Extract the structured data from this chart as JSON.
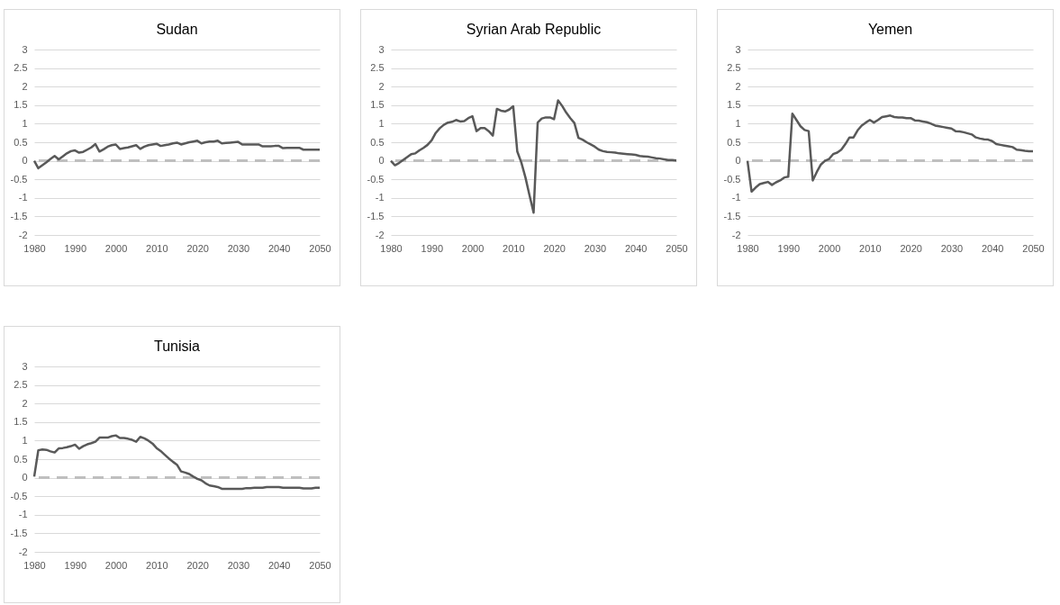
{
  "chart_data": [
    {
      "type": "line",
      "title": "Sudan",
      "x": [
        1980,
        1981,
        1982,
        1983,
        1984,
        1985,
        1986,
        1987,
        1988,
        1989,
        1990,
        1991,
        1992,
        1993,
        1994,
        1995,
        1996,
        1997,
        1998,
        1999,
        2000,
        2001,
        2002,
        2003,
        2004,
        2005,
        2006,
        2007,
        2008,
        2009,
        2010,
        2011,
        2012,
        2013,
        2014,
        2015,
        2016,
        2017,
        2018,
        2019,
        2020,
        2021,
        2022,
        2023,
        2024,
        2025,
        2026,
        2027,
        2028,
        2029,
        2030,
        2031,
        2032,
        2033,
        2034,
        2035,
        2036,
        2037,
        2038,
        2039,
        2040,
        2041,
        2042,
        2043,
        2044,
        2045,
        2046,
        2047,
        2048,
        2049,
        2050
      ],
      "series": [
        {
          "color": "#595959",
          "values": [
            0,
            -0.2,
            -0.12,
            -0.04,
            0.05,
            0.13,
            0.04,
            0.12,
            0.2,
            0.26,
            0.28,
            0.22,
            0.24,
            0.3,
            0.36,
            0.45,
            0.25,
            0.31,
            0.38,
            0.42,
            0.44,
            0.32,
            0.34,
            0.36,
            0.39,
            0.42,
            0.32,
            0.38,
            0.42,
            0.44,
            0.46,
            0.4,
            0.42,
            0.44,
            0.47,
            0.49,
            0.44,
            0.47,
            0.5,
            0.52,
            0.54,
            0.47,
            0.5,
            0.52,
            0.52,
            0.54,
            0.47,
            0.48,
            0.49,
            0.5,
            0.51,
            0.44,
            0.44,
            0.44,
            0.44,
            0.44,
            0.39,
            0.39,
            0.39,
            0.4,
            0.4,
            0.34,
            0.35,
            0.35,
            0.35,
            0.35,
            0.3,
            0.3,
            0.3,
            0.3,
            0.3
          ]
        }
      ],
      "xlim": [
        1980,
        2050
      ],
      "xticks": [
        1980,
        1990,
        2000,
        2010,
        2020,
        2030,
        2040,
        2050
      ],
      "ylim": [
        -2,
        3
      ],
      "yticks": [
        -2,
        -1.5,
        -1,
        -0.5,
        0,
        0.5,
        1,
        1.5,
        2,
        2.5,
        3
      ],
      "grid": "y",
      "ref_lines": [
        {
          "axis": "y",
          "value": 0,
          "color": "#bfbfbf",
          "line_style": "dashed"
        }
      ]
    },
    {
      "type": "line",
      "title": "Syrian Arab Republic",
      "x": [
        1980,
        1981,
        1982,
        1983,
        1984,
        1985,
        1986,
        1987,
        1988,
        1989,
        1990,
        1991,
        1992,
        1993,
        1994,
        1995,
        1996,
        1997,
        1998,
        1999,
        2000,
        2001,
        2002,
        2003,
        2004,
        2005,
        2006,
        2007,
        2008,
        2009,
        2010,
        2011,
        2012,
        2013,
        2014,
        2015,
        2016,
        2017,
        2018,
        2019,
        2020,
        2021,
        2022,
        2023,
        2024,
        2025,
        2026,
        2027,
        2028,
        2029,
        2030,
        2031,
        2032,
        2033,
        2034,
        2035,
        2036,
        2037,
        2038,
        2039,
        2040,
        2041,
        2042,
        2043,
        2044,
        2045,
        2046,
        2047,
        2048,
        2049,
        2050
      ],
      "series": [
        {
          "color": "#595959",
          "values": [
            0,
            -0.12,
            -0.06,
            0.02,
            0.1,
            0.18,
            0.2,
            0.28,
            0.35,
            0.43,
            0.55,
            0.75,
            0.88,
            0.97,
            1.03,
            1.05,
            1.1,
            1.06,
            1.07,
            1.15,
            1.2,
            0.8,
            0.88,
            0.88,
            0.8,
            0.68,
            1.4,
            1.35,
            1.33,
            1.38,
            1.47,
            0.25,
            -0.05,
            -0.45,
            -0.93,
            -1.4,
            1.03,
            1.14,
            1.17,
            1.17,
            1.12,
            1.63,
            1.48,
            1.3,
            1.15,
            1.02,
            0.62,
            0.57,
            0.5,
            0.44,
            0.38,
            0.3,
            0.26,
            0.24,
            0.23,
            0.22,
            0.2,
            0.19,
            0.18,
            0.17,
            0.16,
            0.13,
            0.12,
            0.11,
            0.09,
            0.07,
            0.06,
            0.04,
            0.02,
            0.02,
            0.01
          ]
        }
      ],
      "xlim": [
        1980,
        2050
      ],
      "xticks": [
        1980,
        1990,
        2000,
        2010,
        2020,
        2030,
        2040,
        2050
      ],
      "ylim": [
        -2,
        3
      ],
      "yticks": [
        -2,
        -1.5,
        -1,
        -0.5,
        0,
        0.5,
        1,
        1.5,
        2,
        2.5,
        3
      ],
      "grid": "y",
      "ref_lines": [
        {
          "axis": "y",
          "value": 0,
          "color": "#bfbfbf",
          "line_style": "dashed"
        }
      ]
    },
    {
      "type": "line",
      "title": "Yemen",
      "x": [
        1980,
        1981,
        1982,
        1983,
        1984,
        1985,
        1986,
        1987,
        1988,
        1989,
        1990,
        1991,
        1992,
        1993,
        1994,
        1995,
        1996,
        1997,
        1998,
        1999,
        2000,
        2001,
        2002,
        2003,
        2004,
        2005,
        2006,
        2007,
        2008,
        2009,
        2010,
        2011,
        2012,
        2013,
        2014,
        2015,
        2016,
        2017,
        2018,
        2019,
        2020,
        2021,
        2022,
        2023,
        2024,
        2025,
        2026,
        2027,
        2028,
        2029,
        2030,
        2031,
        2032,
        2033,
        2034,
        2035,
        2036,
        2037,
        2038,
        2039,
        2040,
        2041,
        2042,
        2043,
        2044,
        2045,
        2046,
        2047,
        2048,
        2049,
        2050
      ],
      "series": [
        {
          "color": "#595959",
          "values": [
            0,
            -0.83,
            -0.72,
            -0.63,
            -0.6,
            -0.57,
            -0.65,
            -0.58,
            -0.53,
            -0.45,
            -0.43,
            1.27,
            1.1,
            0.93,
            0.83,
            0.8,
            -0.53,
            -0.3,
            -0.1,
            0,
            0.05,
            0.18,
            0.22,
            0.3,
            0.45,
            0.63,
            0.63,
            0.82,
            0.95,
            1.03,
            1.1,
            1.03,
            1.1,
            1.18,
            1.2,
            1.22,
            1.18,
            1.17,
            1.17,
            1.15,
            1.15,
            1.09,
            1.08,
            1.06,
            1.04,
            1.0,
            0.95,
            0.93,
            0.91,
            0.89,
            0.87,
            0.8,
            0.79,
            0.77,
            0.74,
            0.71,
            0.63,
            0.6,
            0.58,
            0.57,
            0.53,
            0.45,
            0.43,
            0.41,
            0.39,
            0.37,
            0.3,
            0.29,
            0.27,
            0.26,
            0.26
          ]
        }
      ],
      "xlim": [
        1980,
        2050
      ],
      "xticks": [
        1980,
        1990,
        2000,
        2010,
        2020,
        2030,
        2040,
        2050
      ],
      "ylim": [
        -2,
        3
      ],
      "yticks": [
        -2,
        -1.5,
        -1,
        -0.5,
        0,
        0.5,
        1,
        1.5,
        2,
        2.5,
        3
      ],
      "grid": "y",
      "ref_lines": [
        {
          "axis": "y",
          "value": 0,
          "color": "#bfbfbf",
          "line_style": "dashed"
        }
      ]
    },
    {
      "type": "line",
      "title": "Tunisia",
      "x": [
        1980,
        1981,
        1982,
        1983,
        1984,
        1985,
        1986,
        1987,
        1988,
        1989,
        1990,
        1991,
        1992,
        1993,
        1994,
        1995,
        1996,
        1997,
        1998,
        1999,
        2000,
        2001,
        2002,
        2003,
        2004,
        2005,
        2006,
        2007,
        2008,
        2009,
        2010,
        2011,
        2012,
        2013,
        2014,
        2015,
        2016,
        2017,
        2018,
        2019,
        2020,
        2021,
        2022,
        2023,
        2024,
        2025,
        2026,
        2027,
        2028,
        2029,
        2030,
        2031,
        2032,
        2033,
        2034,
        2035,
        2036,
        2037,
        2038,
        2039,
        2040,
        2041,
        2042,
        2043,
        2044,
        2045,
        2046,
        2047,
        2048,
        2049,
        2050
      ],
      "series": [
        {
          "color": "#595959",
          "values": [
            0.03,
            0.74,
            0.76,
            0.75,
            0.71,
            0.68,
            0.79,
            0.8,
            0.82,
            0.85,
            0.89,
            0.78,
            0.85,
            0.9,
            0.93,
            0.97,
            1.08,
            1.08,
            1.08,
            1.12,
            1.14,
            1.07,
            1.07,
            1.05,
            1.02,
            0.97,
            1.1,
            1.06,
            1.0,
            0.92,
            0.8,
            0.72,
            0.62,
            0.52,
            0.43,
            0.35,
            0.17,
            0.14,
            0.1,
            0.03,
            -0.03,
            -0.07,
            -0.15,
            -0.21,
            -0.23,
            -0.25,
            -0.3,
            -0.3,
            -0.3,
            -0.3,
            -0.3,
            -0.3,
            -0.28,
            -0.28,
            -0.27,
            -0.27,
            -0.27,
            -0.25,
            -0.25,
            -0.25,
            -0.25,
            -0.27,
            -0.27,
            -0.27,
            -0.27,
            -0.27,
            -0.29,
            -0.29,
            -0.29,
            -0.27,
            -0.27
          ]
        }
      ],
      "xlim": [
        1980,
        2050
      ],
      "xticks": [
        1980,
        1990,
        2000,
        2010,
        2020,
        2030,
        2040,
        2050
      ],
      "ylim": [
        -2,
        3
      ],
      "yticks": [
        -2,
        -1.5,
        -1,
        -0.5,
        0,
        0.5,
        1,
        1.5,
        2,
        2.5,
        3
      ],
      "grid": "y",
      "ref_lines": [
        {
          "axis": "y",
          "value": 0,
          "color": "#bfbfbf",
          "line_style": "dashed"
        }
      ]
    }
  ]
}
